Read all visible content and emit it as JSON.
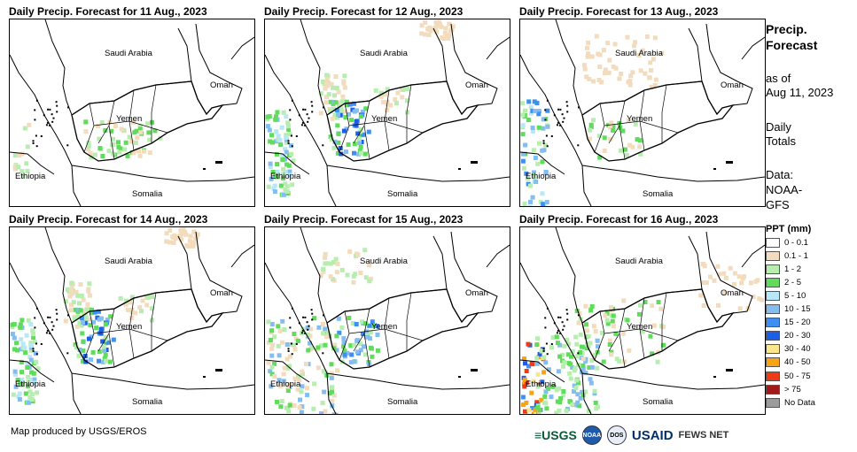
{
  "panels": [
    {
      "title": "Daily Precip. Forecast for 11 Aug., 2023",
      "rain": "light"
    },
    {
      "title": "Daily Precip. Forecast for 12 Aug., 2023",
      "rain": "heavy"
    },
    {
      "title": "Daily Precip. Forecast for 13 Aug., 2023",
      "rain": "west"
    },
    {
      "title": "Daily Precip. Forecast for 14 Aug., 2023",
      "rain": "heavy"
    },
    {
      "title": "Daily Precip. Forecast for 15 Aug., 2023",
      "rain": "heavy-west"
    },
    {
      "title": "Daily Precip. Forecast for 16 Aug., 2023",
      "rain": "extreme"
    }
  ],
  "map_labels": {
    "saudi_arabia": "Saudi Arabia",
    "oman": "Oman",
    "yemen": "Yemen",
    "ethiopia": "Ethiopia",
    "somalia": "Somalia"
  },
  "legend": {
    "title_line1": "Precip.",
    "title_line2": "Forecast",
    "asof_line1": "as of",
    "asof_line2": "Aug 11, 2023",
    "totals_line1": "Daily",
    "totals_line2": "Totals",
    "data_line1": "Data:",
    "data_line2": "NOAA-",
    "data_line3": "GFS",
    "ppt_title": "PPT (mm)",
    "classes": [
      {
        "label": "0 - 0.1",
        "color": "#ffffff"
      },
      {
        "label": "0.1 - 1",
        "color": "#f2dcbd"
      },
      {
        "label": "1 - 2",
        "color": "#b7eeb0"
      },
      {
        "label": "2 - 5",
        "color": "#5fdc5a"
      },
      {
        "label": "5 - 10",
        "color": "#b8e8f6"
      },
      {
        "label": "10 - 15",
        "color": "#86bdf0"
      },
      {
        "label": "15 - 20",
        "color": "#3f8ff0"
      },
      {
        "label": "20 - 30",
        "color": "#1c5fe6"
      },
      {
        "label": "30 - 40",
        "color": "#fbe68a"
      },
      {
        "label": "40 - 50",
        "color": "#f7a313"
      },
      {
        "label": "50 - 75",
        "color": "#ef3a16"
      },
      {
        "label": "> 75",
        "color": "#a31a1a"
      },
      {
        "label": "No Data",
        "color": "#9c9c9c"
      }
    ]
  },
  "credit": "Map produced by USGS/EROS",
  "logos": {
    "usgs": "≡USGS",
    "noaa": "NOAA",
    "dos": "DOS",
    "usaid": "USAID",
    "fews": "FEWS NET"
  }
}
